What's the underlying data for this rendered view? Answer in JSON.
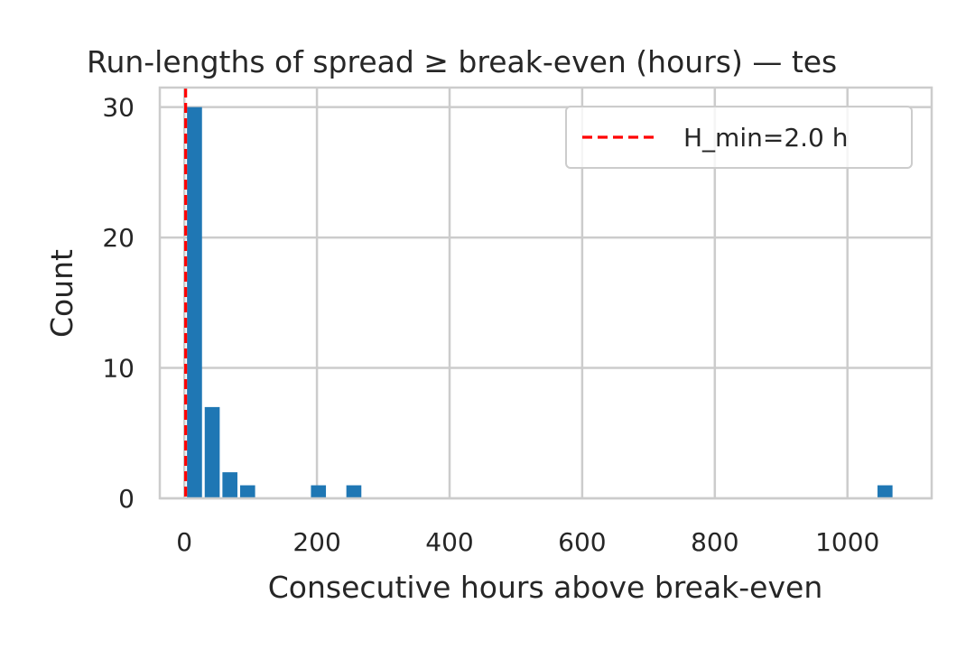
{
  "chart_data": {
    "type": "bar",
    "title": "Run-lengths of spread ≥ break-even (hours) — tes",
    "xlabel": "Consecutive hours above break-even",
    "ylabel": "Count",
    "xlim": [
      -37,
      1127
    ],
    "ylim": [
      0,
      31.5
    ],
    "xticks": [
      0,
      200,
      400,
      600,
      800,
      1000
    ],
    "yticks": [
      0,
      10,
      20,
      30
    ],
    "grid": true,
    "bin_width": 26.7,
    "bins": [
      {
        "x0": 2,
        "x1": 28.7,
        "value": 30
      },
      {
        "x0": 28.7,
        "x1": 55.4,
        "value": 7
      },
      {
        "x0": 55.4,
        "x1": 82.1,
        "value": 2
      },
      {
        "x0": 82.1,
        "x1": 108.8,
        "value": 1
      },
      {
        "x0": 188.9,
        "x1": 215.6,
        "value": 1
      },
      {
        "x0": 242.3,
        "x1": 269.0,
        "value": 1
      },
      {
        "x0": 1043.3,
        "x1": 1070.0,
        "value": 1
      }
    ],
    "bar_color": "#1f77b4",
    "reference_line": {
      "x": 2.0,
      "label": "H_min=2.0 h",
      "color": "#ff0000",
      "style": "dashed"
    },
    "legend_placement": "top-right"
  }
}
